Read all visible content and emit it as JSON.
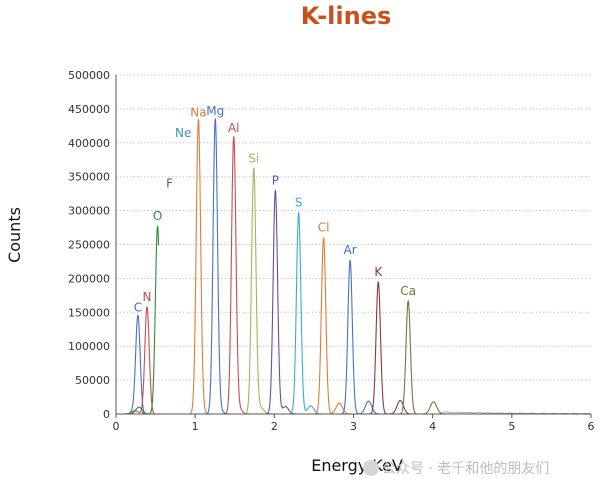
{
  "chart_data": {
    "type": "line",
    "title": "K-lines",
    "xlabel": "Energy KeV",
    "ylabel": "Counts",
    "xlim": [
      0,
      6
    ],
    "ylim": [
      0,
      500000
    ],
    "xticks": [
      "0",
      "1",
      "2",
      "3",
      "4",
      "5",
      "6"
    ],
    "yticks": [
      "0",
      "50000",
      "100000",
      "150000",
      "200000",
      "250000",
      "300000",
      "350000",
      "400000",
      "450000",
      "500000"
    ],
    "grid": "horizontal dotted",
    "colors": {
      "title": "#c9501c"
    },
    "series": [
      {
        "name": "C",
        "x": 0.277,
        "y": 142000,
        "kb_x": 0.24,
        "kb_y": 6000,
        "color": "#4472c4"
      },
      {
        "name": "N",
        "x": 0.392,
        "y": 158000,
        "kb_x": 0.24,
        "kb_y": 5000,
        "color": "#c0504d"
      },
      {
        "name": "O",
        "x": 0.525,
        "y": 277000,
        "kb_x": 0.29,
        "kb_y": 10000,
        "color": "#2e8b3a"
      },
      {
        "name": "F",
        "x": 0.677,
        "y": 325000,
        "kb_x": 0.26,
        "kb_y": 12000,
        "color": "#6f4a9e"
      },
      {
        "name": "Ne",
        "x": 0.849,
        "y": 400000,
        "kb_x": 0.22,
        "kb_y": 8000,
        "color": "#3d93b9"
      },
      {
        "name": "Na",
        "x": 1.041,
        "y": 430000,
        "kb_x": 1.07,
        "kb_y": 6000,
        "color": "#e07b39"
      },
      {
        "name": "Mg",
        "x": 1.254,
        "y": 432000,
        "kb_x": 1.3,
        "kb_y": 7000,
        "color": "#4472c4"
      },
      {
        "name": "Al",
        "x": 1.487,
        "y": 407000,
        "kb_x": 1.55,
        "kb_y": 8000,
        "color": "#c0504d"
      },
      {
        "name": "Si",
        "x": 1.74,
        "y": 362000,
        "kb_x": 1.83,
        "kb_y": 9000,
        "color": "#9bbb59"
      },
      {
        "name": "P",
        "x": 2.013,
        "y": 330000,
        "kb_x": 2.14,
        "kb_y": 11000,
        "color": "#6f4a9e"
      },
      {
        "name": "S",
        "x": 2.307,
        "y": 297000,
        "kb_x": 2.46,
        "kb_y": 12000,
        "color": "#3da9d6"
      },
      {
        "name": "Cl",
        "x": 2.622,
        "y": 260000,
        "kb_x": 2.82,
        "kb_y": 16000,
        "color": "#e07b39"
      },
      {
        "name": "Ar",
        "x": 2.957,
        "y": 227000,
        "kb_x": 3.19,
        "kb_y": 19000,
        "color": "#4472c4"
      },
      {
        "name": "K",
        "x": 3.313,
        "y": 195000,
        "kb_x": 3.59,
        "kb_y": 20000,
        "color": "#8b3a3a"
      },
      {
        "name": "Ca",
        "x": 3.691,
        "y": 167000,
        "kb_x": 4.01,
        "kb_y": 18000,
        "color": "#6b7b3a"
      }
    ]
  },
  "watermark": "公众号 · 老千和他的朋友们"
}
